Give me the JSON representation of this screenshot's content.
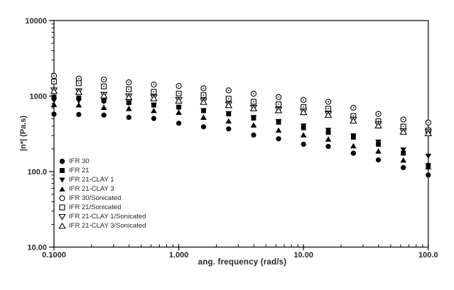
{
  "colors": {
    "marker": "#000000",
    "open_marker_fill": "#ffffff",
    "axis_line": "#000000",
    "text": "#26262e",
    "background": "#ffffff"
  },
  "chart_data": {
    "type": "scatter",
    "title": "",
    "xlabel": "ang. frequency (rad/s)",
    "ylabel": "|n*| (Pa.s)",
    "x_scale": "log",
    "y_scale": "log",
    "xlim": [
      0.1,
      100
    ],
    "ylim": [
      10,
      10000
    ],
    "x_major_ticks": [
      0.1,
      1,
      10,
      100
    ],
    "x_tick_labels": [
      "0.1000",
      "1.000",
      "10.00",
      "100.0"
    ],
    "y_major_ticks": [
      10,
      100,
      1000,
      10000
    ],
    "y_tick_labels": [
      "10.00",
      "100.0",
      "1000",
      "10000"
    ],
    "grid": "off",
    "legend_position": "inside-lower-left",
    "x": [
      0.1,
      0.158,
      0.251,
      0.398,
      0.631,
      1.0,
      1.58,
      2.51,
      3.98,
      6.31,
      10.0,
      15.8,
      25.1,
      39.8,
      63.1,
      100
    ],
    "series": [
      {
        "name": "IFR 30",
        "marker": "circle",
        "fill": "filled",
        "values": [
          575,
          570,
          560,
          522,
          505,
          437,
          392,
          368,
          305,
          272,
          230,
          215,
          175,
          143,
          113,
          90
        ]
      },
      {
        "name": "IFR 21",
        "marker": "square",
        "fill": "filled",
        "values": [
          970,
          945,
          870,
          820,
          760,
          715,
          640,
          580,
          510,
          450,
          380,
          330,
          285,
          230,
          175,
          121
        ]
      },
      {
        "name": "IFR 21-CLAY 1",
        "marker": "triangle-down",
        "fill": "filled",
        "values": [
          880,
          868,
          848,
          812,
          768,
          700,
          648,
          590,
          525,
          465,
          405,
          355,
          300,
          248,
          195,
          161
        ]
      },
      {
        "name": "IFR 21-CLAY 3",
        "marker": "triangle-up",
        "fill": "filled",
        "values": [
          770,
          760,
          705,
          680,
          640,
          605,
          520,
          465,
          412,
          352,
          305,
          268,
          218,
          186,
          141,
          115
        ]
      },
      {
        "name": "IFR 30/Sonicated",
        "marker": "circle",
        "fill": "open",
        "values": [
          1850,
          1700,
          1650,
          1520,
          1420,
          1360,
          1270,
          1190,
          1075,
          970,
          890,
          840,
          700,
          580,
          490,
          445
        ]
      },
      {
        "name": "IFR 21/Sonicated",
        "marker": "square",
        "fill": "open",
        "values": [
          1560,
          1480,
          1340,
          1230,
          1140,
          1080,
          1030,
          925,
          840,
          780,
          715,
          680,
          545,
          465,
          395,
          350
        ]
      },
      {
        "name": "IFR 21-CLAY 1/Sonicated",
        "marker": "triangle-down",
        "fill": "open",
        "values": [
          1200,
          1170,
          1050,
          1000,
          965,
          895,
          865,
          780,
          705,
          665,
          630,
          580,
          490,
          425,
          345,
          335
        ]
      },
      {
        "name": "IFR 21-CLAY 3/Sonicated",
        "marker": "triangle-up",
        "fill": "open",
        "values": [
          1160,
          1130,
          1010,
          965,
          930,
          865,
          835,
          755,
          685,
          645,
          610,
          560,
          470,
          405,
          335,
          320
        ]
      }
    ]
  }
}
